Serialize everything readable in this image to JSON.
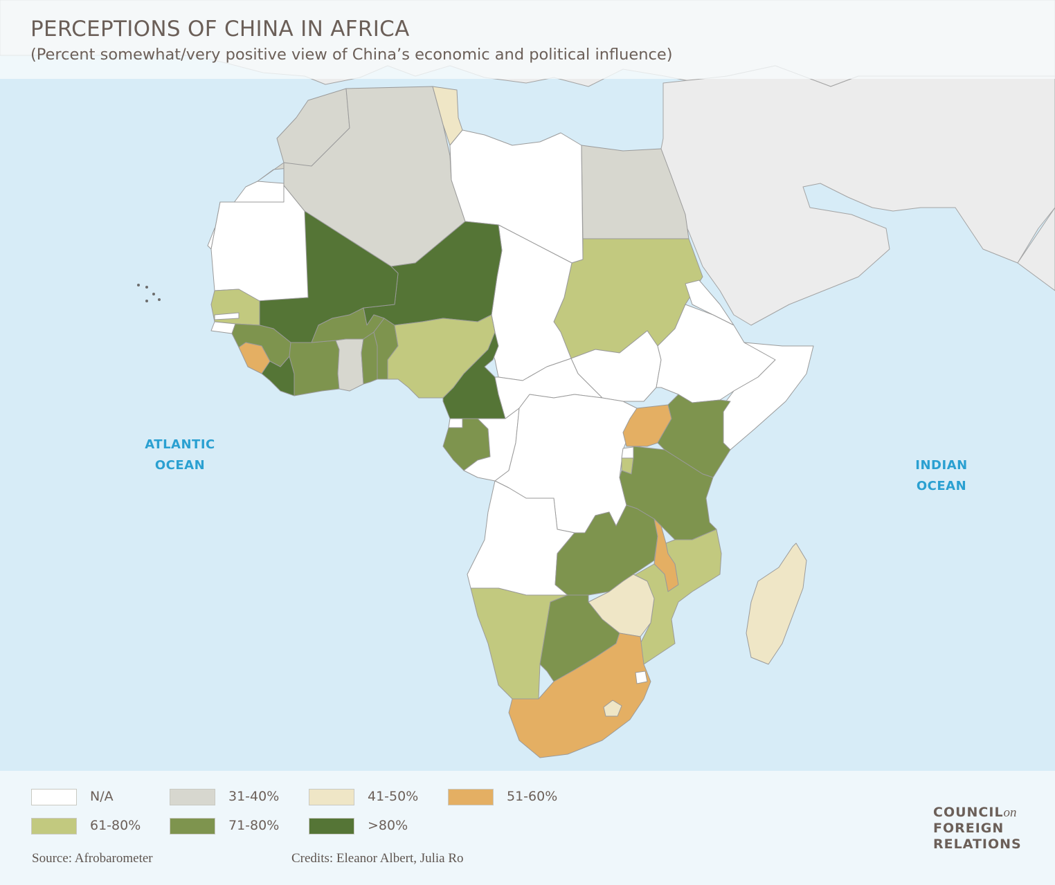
{
  "title": "PERCEPTIONS OF CHINA IN AFRICA",
  "subtitle": "(Percent somewhat/very positive view of China’s economic and political influence)",
  "oceans": {
    "atlantic": [
      "ATLANTIC",
      "OCEAN"
    ],
    "indian": [
      "INDIAN",
      "OCEAN"
    ]
  },
  "colors": {
    "ocean": "#d7ecf7",
    "land_other": "#ececec",
    "border": "#9a9a9a",
    "na": "#ffffff",
    "c31_40": "#d7d7cf",
    "c41_50": "#efe6c6",
    "c51_60": "#e4af63",
    "c61_80": "#c2c97f",
    "c71_80": "#7e944e",
    "gt80": "#557536",
    "ocean_label": "#2aa0d1",
    "text": "#6b5f58"
  },
  "legend": [
    {
      "label": "N/A",
      "color": "#ffffff"
    },
    {
      "label": "31-40%",
      "color": "#d7d7cf"
    },
    {
      "label": "41-50%",
      "color": "#efe6c6"
    },
    {
      "label": "51-60%",
      "color": "#e4af63"
    },
    {
      "label": "61-80%",
      "color": "#c2c97f"
    },
    {
      "label": "71-80%",
      "color": "#7e944e"
    },
    {
      "label": ">80%",
      "color": "#557536"
    }
  ],
  "source": "Source: Afrobarometer",
  "credits": "Credits: Eleanor Albert, Julia Ro",
  "logo": {
    "line1": "COUNCIL",
    "line1_suffix": "on",
    "line2": "FOREIGN",
    "line3": "RELATIONS"
  },
  "regions": [
    {
      "name": "morocco",
      "category": "31-40%"
    },
    {
      "name": "algeria",
      "category": "31-40%"
    },
    {
      "name": "egypt",
      "category": "31-40%"
    },
    {
      "name": "ghana",
      "category": "31-40%"
    },
    {
      "name": "tunisia",
      "category": "41-50%"
    },
    {
      "name": "zimbabwe",
      "category": "41-50%"
    },
    {
      "name": "madagascar",
      "category": "41-50%"
    },
    {
      "name": "lesotho",
      "category": "41-50%"
    },
    {
      "name": "sierra-leone",
      "category": "51-60%"
    },
    {
      "name": "uganda",
      "category": "51-60%"
    },
    {
      "name": "malawi",
      "category": "51-60%"
    },
    {
      "name": "south-africa",
      "category": "51-60%"
    },
    {
      "name": "senegal",
      "category": "61-80%"
    },
    {
      "name": "nigeria",
      "category": "61-80%"
    },
    {
      "name": "sudan",
      "category": "61-80%"
    },
    {
      "name": "namibia",
      "category": "61-80%"
    },
    {
      "name": "mozambique",
      "category": "61-80%"
    },
    {
      "name": "burundi",
      "category": "61-80%"
    },
    {
      "name": "guinea",
      "category": "71-80%"
    },
    {
      "name": "cote-divoire",
      "category": "71-80%"
    },
    {
      "name": "burkina-faso",
      "category": "71-80%"
    },
    {
      "name": "togo",
      "category": "71-80%"
    },
    {
      "name": "benin",
      "category": "71-80%"
    },
    {
      "name": "gabon",
      "category": "71-80%"
    },
    {
      "name": "kenya",
      "category": "71-80%"
    },
    {
      "name": "tanzania",
      "category": "71-80%"
    },
    {
      "name": "zambia",
      "category": "71-80%"
    },
    {
      "name": "botswana",
      "category": "71-80%"
    },
    {
      "name": "mali",
      "category": ">80%"
    },
    {
      "name": "niger",
      "category": ">80%"
    },
    {
      "name": "cameroon",
      "category": ">80%"
    },
    {
      "name": "liberia",
      "category": ">80%"
    }
  ]
}
